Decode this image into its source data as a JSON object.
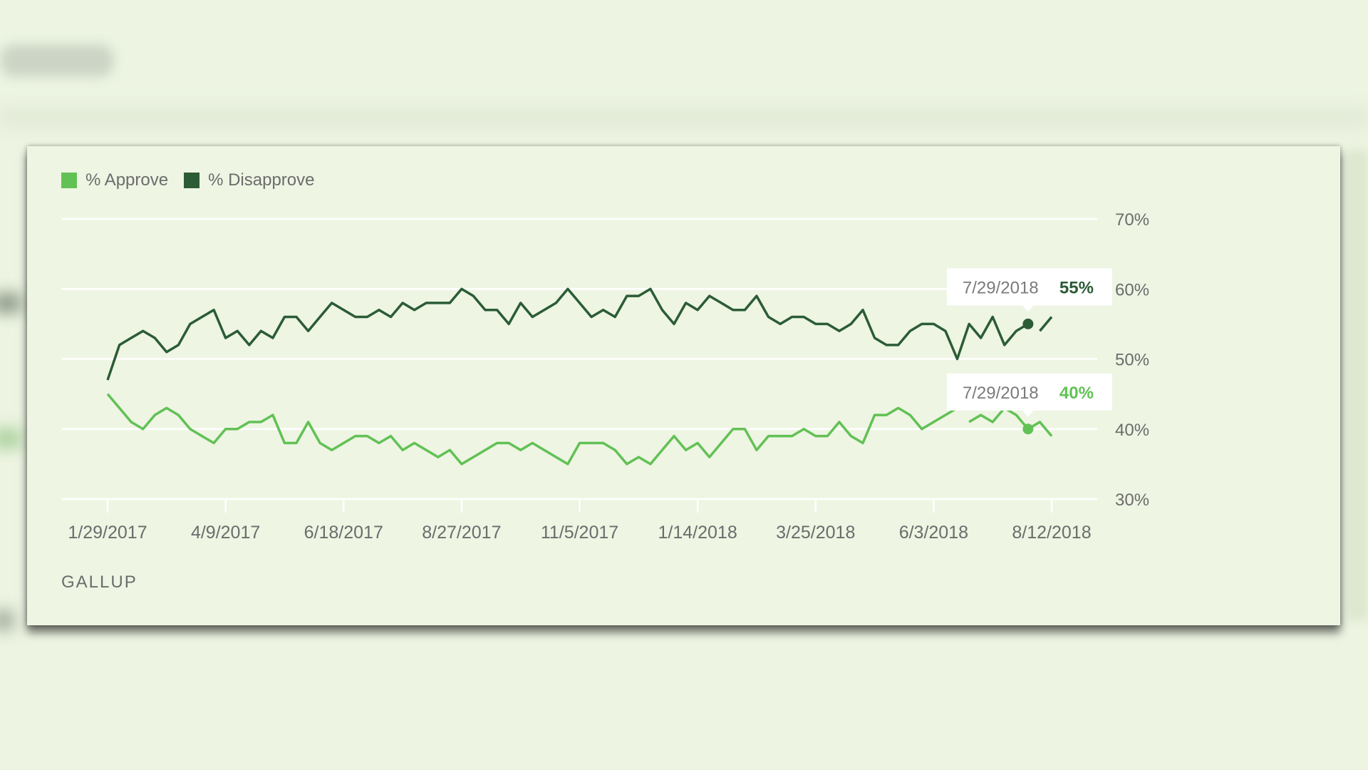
{
  "chart_data": {
    "type": "line",
    "x_ticks": [
      "1/29/2017",
      "4/9/2017",
      "6/18/2017",
      "8/27/2017",
      "11/5/2017",
      "1/14/2018",
      "3/25/2018",
      "6/3/2018",
      "8/12/2018"
    ],
    "y_ticks": [
      "70%",
      "60%",
      "50%",
      "40%",
      "30%"
    ],
    "ylim": [
      30,
      70
    ],
    "grid": true,
    "legend_position": "top-left",
    "series": [
      {
        "name": "% Approve",
        "color": "#62c155",
        "values": [
          45,
          43,
          41,
          40,
          42,
          43,
          42,
          40,
          39,
          38,
          40,
          40,
          41,
          41,
          42,
          38,
          38,
          41,
          38,
          37,
          38,
          39,
          39,
          38,
          39,
          37,
          38,
          37,
          36,
          37,
          35,
          36,
          37,
          38,
          38,
          37,
          38,
          37,
          36,
          35,
          38,
          38,
          38,
          37,
          35,
          36,
          35,
          37,
          39,
          37,
          38,
          36,
          38,
          40,
          40,
          37,
          39,
          39,
          39,
          40,
          39,
          39,
          41,
          39,
          38,
          42,
          42,
          43,
          42,
          40,
          41,
          42,
          43,
          41,
          42,
          41,
          43,
          42,
          40,
          41,
          39
        ]
      },
      {
        "name": "% Disapprove",
        "color": "#2b5c36",
        "values": [
          47,
          52,
          53,
          54,
          53,
          51,
          52,
          55,
          56,
          57,
          53,
          54,
          52,
          54,
          53,
          56,
          56,
          54,
          56,
          58,
          57,
          56,
          56,
          57,
          56,
          58,
          57,
          58,
          58,
          58,
          60,
          59,
          57,
          57,
          55,
          58,
          56,
          57,
          58,
          60,
          58,
          56,
          57,
          56,
          59,
          59,
          60,
          57,
          55,
          58,
          57,
          59,
          58,
          57,
          57,
          59,
          56,
          55,
          56,
          56,
          55,
          55,
          54,
          55,
          57,
          53,
          52,
          52,
          54,
          55,
          55,
          54,
          50,
          55,
          53,
          56,
          52,
          54,
          55,
          54,
          56
        ]
      }
    ],
    "gaps": [
      {
        "series": 0,
        "after_index": 72
      },
      {
        "series": 1,
        "after_index": 78
      }
    ],
    "tooltips": [
      {
        "series": 1,
        "index": 78,
        "date": "7/29/2018",
        "value": "55%"
      },
      {
        "series": 0,
        "index": 78,
        "date": "7/29/2018",
        "value": "40%"
      }
    ]
  },
  "legend": {
    "approve": "% Approve",
    "disapprove": "% Disapprove"
  },
  "source": "GALLUP",
  "colors": {
    "approve": "#62c155",
    "disapprove": "#2b5c36",
    "grid": "#ffffff",
    "text": "#6c6c6c"
  }
}
